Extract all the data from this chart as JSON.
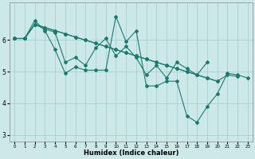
{
  "background_color": "#cde8e8",
  "grid_color": "#aacece",
  "line_color": "#1a7a6e",
  "xlabel": "Humidex (Indice chaleur)",
  "xlim": [
    -0.5,
    23.5
  ],
  "ylim": [
    2.8,
    7.2
  ],
  "yticks": [
    3,
    4,
    5,
    6
  ],
  "xtick_labels": [
    "0",
    "1",
    "2",
    "3",
    "4",
    "5",
    "6",
    "7",
    "8",
    "9",
    "10",
    "11",
    "12",
    "13",
    "14",
    "15",
    "16",
    "17",
    "18",
    "19",
    "20",
    "21",
    "22",
    "23"
  ],
  "s1_x": [
    0,
    1,
    2,
    3,
    4,
    5,
    6,
    7,
    8,
    9,
    10,
    11,
    12,
    13,
    14,
    15,
    16,
    17,
    18,
    19,
    20,
    21,
    22,
    23
  ],
  "s1_y": [
    6.05,
    6.05,
    6.62,
    6.3,
    5.7,
    4.95,
    5.15,
    5.05,
    5.05,
    5.05,
    6.75,
    5.95,
    6.3,
    4.55,
    4.55,
    4.7,
    4.7,
    3.6,
    3.4,
    3.9,
    4.3,
    4.95,
    4.9,
    4.8
  ],
  "s2_x": [
    0,
    1,
    2,
    3,
    4,
    5,
    6,
    7,
    8,
    9,
    10,
    11,
    12,
    13,
    14,
    15,
    16,
    17,
    18,
    19
  ],
  "s2_y": [
    6.05,
    6.05,
    6.5,
    6.35,
    6.25,
    5.3,
    5.45,
    5.2,
    5.75,
    6.05,
    5.5,
    5.8,
    5.45,
    4.9,
    5.2,
    4.8,
    5.3,
    5.1,
    4.9,
    5.3
  ],
  "s3_x": [
    0,
    1,
    2,
    3,
    4,
    5,
    6,
    7,
    8,
    9,
    10,
    11,
    12,
    13,
    14,
    15,
    16,
    17,
    18,
    19,
    20
  ],
  "s3_y": [
    6.05,
    6.05,
    6.5,
    6.4,
    6.3,
    6.2,
    6.1,
    6.0,
    5.9,
    5.8,
    5.7,
    5.6,
    5.5,
    5.4,
    5.3,
    5.2,
    5.1,
    5.0,
    4.9,
    4.8,
    4.7
  ],
  "s4_x": [
    0,
    1,
    2,
    3,
    4,
    5,
    6,
    7,
    8,
    9,
    10,
    11,
    12,
    13,
    14,
    15,
    16,
    17,
    18,
    19,
    20,
    21,
    22
  ],
  "s4_y": [
    6.05,
    6.05,
    6.5,
    6.4,
    6.3,
    6.2,
    6.1,
    6.0,
    5.9,
    5.8,
    5.7,
    5.6,
    5.5,
    5.4,
    5.3,
    5.2,
    5.1,
    5.0,
    4.9,
    4.8,
    4.7,
    4.9,
    4.85
  ]
}
